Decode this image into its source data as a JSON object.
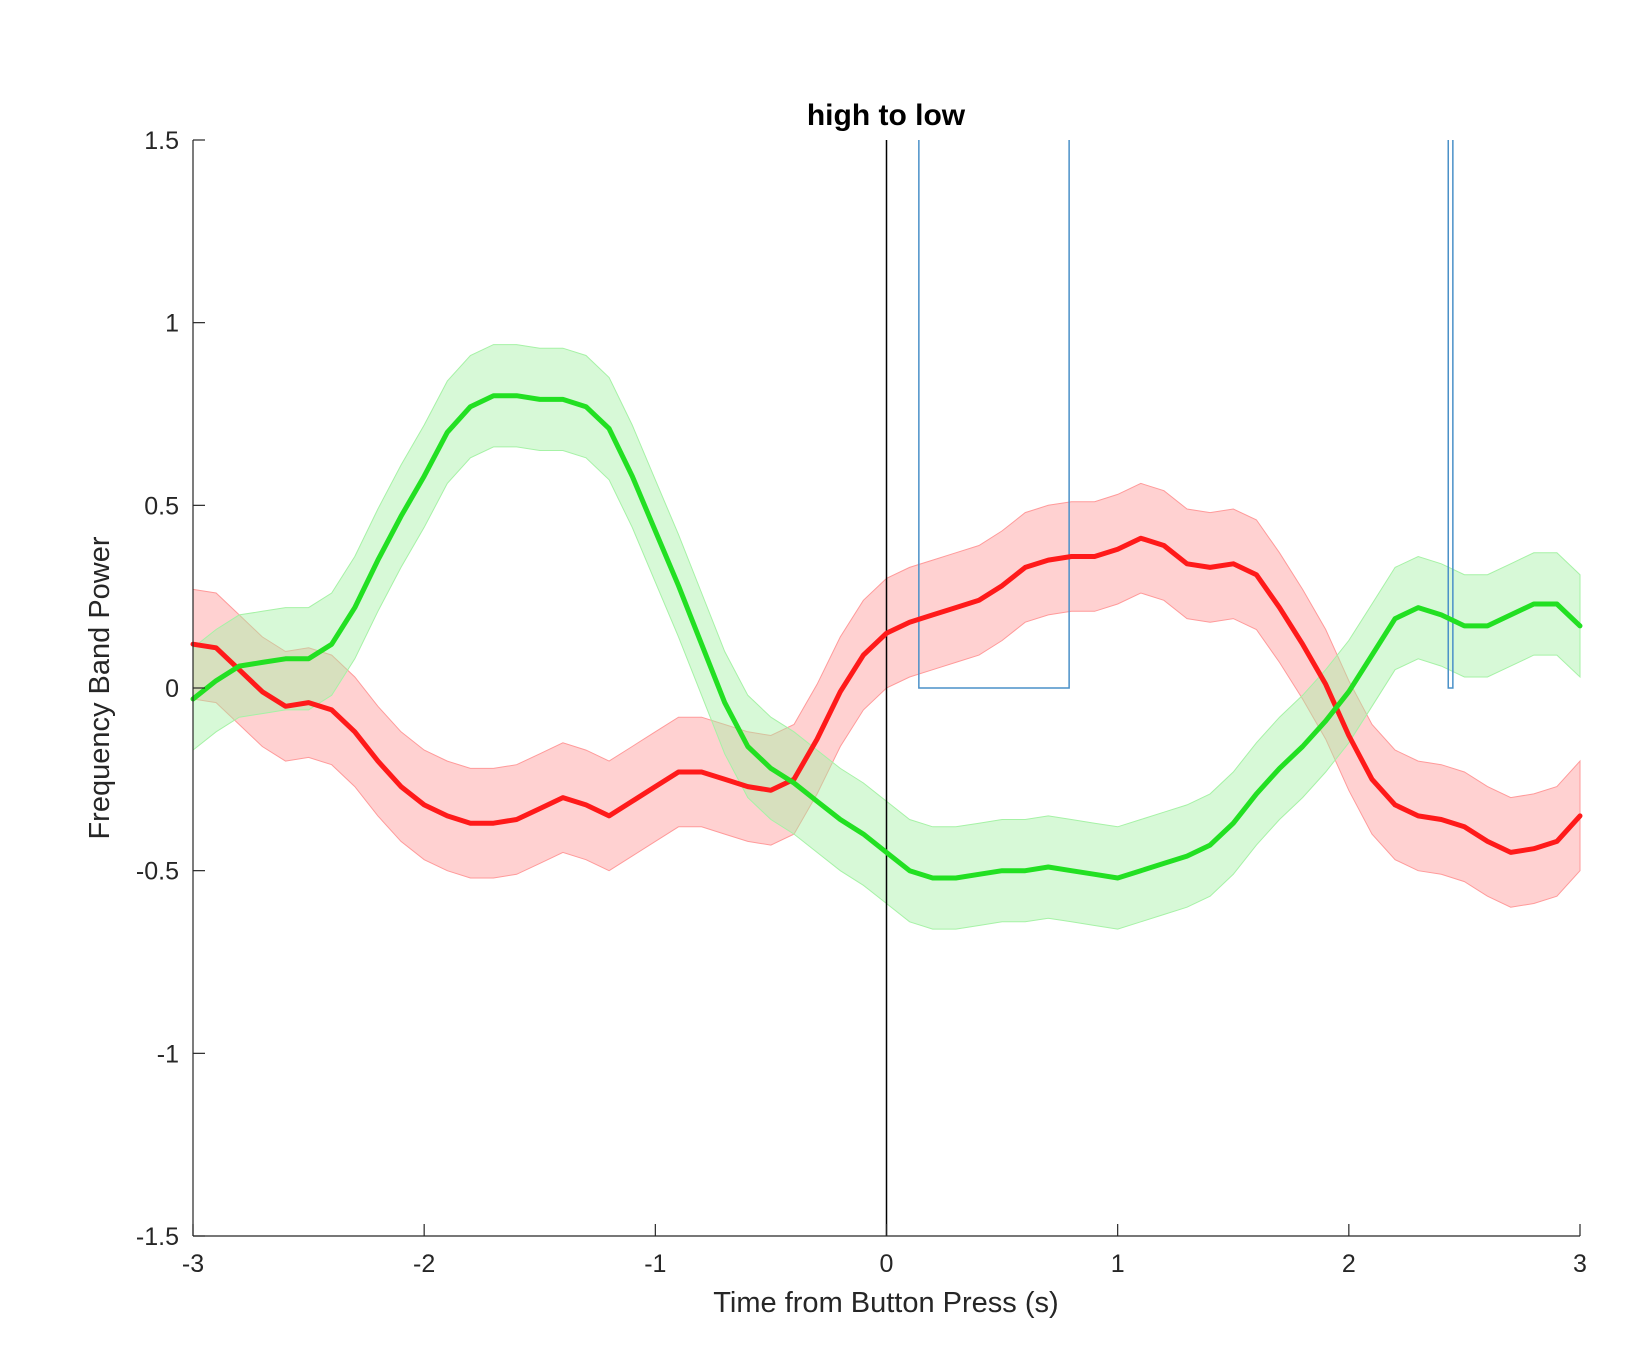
{
  "chart_data": {
    "type": "line",
    "title": "high to low",
    "xlabel": "Time from Button Press (s)",
    "ylabel": "Frequency Band Power",
    "xlim": [
      -3,
      3
    ],
    "ylim": [
      -1.5,
      1.5
    ],
    "xticks": [
      -3,
      -2,
      -1,
      0,
      1,
      2,
      3
    ],
    "xtick_labels": [
      "-3",
      "-2",
      "-1",
      "0",
      "1",
      "2",
      "3"
    ],
    "yticks": [
      -1.5,
      -1,
      -0.5,
      0,
      0.5,
      1,
      1.5
    ],
    "ytick_labels": [
      "-1.5",
      "-1",
      "-0.5",
      "0",
      "0.5",
      "1",
      "1.5"
    ],
    "grid": false,
    "reference_line": {
      "x": 0,
      "color": "#000000"
    },
    "significance_windows": {
      "color": "#4a90c8",
      "y_range": [
        0,
        1.5
      ],
      "intervals": [
        [
          0.14,
          0.79
        ],
        [
          2.43,
          2.45
        ]
      ]
    },
    "series": [
      {
        "color": "#ff1a1a",
        "band_color": "#ff9a9a",
        "x": [
          -3.0,
          -2.9,
          -2.8,
          -2.7,
          -2.6,
          -2.5,
          -2.4,
          -2.3,
          -2.2,
          -2.1,
          -2.0,
          -1.9,
          -1.8,
          -1.7,
          -1.6,
          -1.5,
          -1.4,
          -1.3,
          -1.2,
          -1.1,
          -1.0,
          -0.9,
          -0.8,
          -0.7,
          -0.6,
          -0.5,
          -0.4,
          -0.3,
          -0.2,
          -0.1,
          0.0,
          0.1,
          0.2,
          0.3,
          0.4,
          0.5,
          0.6,
          0.7,
          0.8,
          0.9,
          1.0,
          1.1,
          1.2,
          1.3,
          1.4,
          1.5,
          1.6,
          1.7,
          1.8,
          1.9,
          2.0,
          2.1,
          2.2,
          2.3,
          2.4,
          2.5,
          2.6,
          2.7,
          2.8,
          2.9,
          3.0
        ],
        "y": [
          0.12,
          0.11,
          0.05,
          -0.01,
          -0.05,
          -0.04,
          -0.06,
          -0.12,
          -0.2,
          -0.27,
          -0.32,
          -0.35,
          -0.37,
          -0.37,
          -0.36,
          -0.33,
          -0.3,
          -0.32,
          -0.35,
          -0.31,
          -0.27,
          -0.23,
          -0.23,
          -0.25,
          -0.27,
          -0.28,
          -0.25,
          -0.14,
          -0.01,
          0.09,
          0.15,
          0.18,
          0.2,
          0.22,
          0.24,
          0.28,
          0.33,
          0.35,
          0.36,
          0.36,
          0.38,
          0.41,
          0.39,
          0.34,
          0.33,
          0.34,
          0.31,
          0.22,
          0.12,
          0.01,
          -0.13,
          -0.25,
          -0.32,
          -0.35,
          -0.36,
          -0.38,
          -0.42,
          -0.45,
          -0.44,
          -0.42,
          -0.35
        ],
        "band": 0.15
      },
      {
        "color": "#22e022",
        "band_color": "#a6f2a6",
        "x": [
          -3.0,
          -2.9,
          -2.8,
          -2.7,
          -2.6,
          -2.5,
          -2.4,
          -2.3,
          -2.2,
          -2.1,
          -2.0,
          -1.9,
          -1.8,
          -1.7,
          -1.6,
          -1.5,
          -1.4,
          -1.3,
          -1.2,
          -1.1,
          -1.0,
          -0.9,
          -0.8,
          -0.7,
          -0.6,
          -0.5,
          -0.4,
          -0.3,
          -0.2,
          -0.1,
          0.0,
          0.1,
          0.2,
          0.3,
          0.4,
          0.5,
          0.6,
          0.7,
          0.8,
          0.9,
          1.0,
          1.1,
          1.2,
          1.3,
          1.4,
          1.5,
          1.6,
          1.7,
          1.8,
          1.9,
          2.0,
          2.1,
          2.2,
          2.3,
          2.4,
          2.5,
          2.6,
          2.7,
          2.8,
          2.9,
          3.0
        ],
        "y": [
          -0.03,
          0.02,
          0.06,
          0.07,
          0.08,
          0.08,
          0.12,
          0.22,
          0.35,
          0.47,
          0.58,
          0.7,
          0.77,
          0.8,
          0.8,
          0.79,
          0.79,
          0.77,
          0.71,
          0.58,
          0.43,
          0.28,
          0.12,
          -0.04,
          -0.16,
          -0.22,
          -0.26,
          -0.31,
          -0.36,
          -0.4,
          -0.45,
          -0.5,
          -0.52,
          -0.52,
          -0.51,
          -0.5,
          -0.5,
          -0.49,
          -0.5,
          -0.51,
          -0.52,
          -0.5,
          -0.48,
          -0.46,
          -0.43,
          -0.37,
          -0.29,
          -0.22,
          -0.16,
          -0.09,
          -0.01,
          0.09,
          0.19,
          0.22,
          0.2,
          0.17,
          0.17,
          0.2,
          0.23,
          0.23,
          0.17
        ],
        "band": 0.14
      }
    ]
  }
}
